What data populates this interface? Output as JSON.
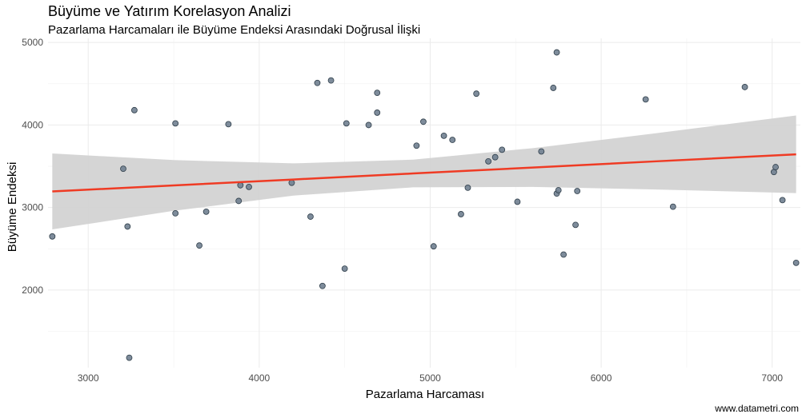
{
  "chart_data": {
    "type": "scatter",
    "title": "Büyüme ve Yatırım Korelasyon Analizi",
    "subtitle": "Pazarlama Harcamaları ile Büyüme Endeksi Arasındaki Doğrusal İlişki",
    "xlabel": "Pazarlama Harcaması",
    "ylabel": "Büyüme Endeksi",
    "caption": "www.datametri.com",
    "xlim": [
      2765,
      7165
    ],
    "ylim": [
      1060,
      5050
    ],
    "x_ticks": [
      3000,
      4000,
      5000,
      6000,
      7000
    ],
    "x_tick_labels": [
      "3000",
      "4000",
      "5000",
      "6000",
      "7000"
    ],
    "y_ticks": [
      2000,
      3000,
      4000,
      5000
    ],
    "y_tick_labels": [
      "2000",
      "3000",
      "4000",
      "5000"
    ],
    "grid": true,
    "points_color": "#708090",
    "trend_color": "#ef3b24",
    "band_color": "#d3d3d3",
    "points": [
      {
        "x": 2790,
        "y": 2650
      },
      {
        "x": 3205,
        "y": 3470
      },
      {
        "x": 3230,
        "y": 2770
      },
      {
        "x": 3240,
        "y": 1180
      },
      {
        "x": 3270,
        "y": 4180
      },
      {
        "x": 3510,
        "y": 4020
      },
      {
        "x": 3510,
        "y": 2930
      },
      {
        "x": 3650,
        "y": 2540
      },
      {
        "x": 3690,
        "y": 2950
      },
      {
        "x": 3820,
        "y": 4010
      },
      {
        "x": 3880,
        "y": 3080
      },
      {
        "x": 3890,
        "y": 3270
      },
      {
        "x": 3940,
        "y": 3250
      },
      {
        "x": 4190,
        "y": 3300
      },
      {
        "x": 4300,
        "y": 2890
      },
      {
        "x": 4340,
        "y": 4510
      },
      {
        "x": 4370,
        "y": 2050
      },
      {
        "x": 4420,
        "y": 4540
      },
      {
        "x": 4500,
        "y": 2260
      },
      {
        "x": 4510,
        "y": 4020
      },
      {
        "x": 4640,
        "y": 4000
      },
      {
        "x": 4690,
        "y": 4150
      },
      {
        "x": 4690,
        "y": 4390
      },
      {
        "x": 4920,
        "y": 3750
      },
      {
        "x": 4960,
        "y": 4040
      },
      {
        "x": 5020,
        "y": 2530
      },
      {
        "x": 5080,
        "y": 3870
      },
      {
        "x": 5130,
        "y": 3820
      },
      {
        "x": 5180,
        "y": 2920
      },
      {
        "x": 5220,
        "y": 3240
      },
      {
        "x": 5270,
        "y": 4380
      },
      {
        "x": 5340,
        "y": 3560
      },
      {
        "x": 5380,
        "y": 3610
      },
      {
        "x": 5420,
        "y": 3700
      },
      {
        "x": 5510,
        "y": 3070
      },
      {
        "x": 5650,
        "y": 3680
      },
      {
        "x": 5720,
        "y": 4450
      },
      {
        "x": 5740,
        "y": 4880
      },
      {
        "x": 5740,
        "y": 3170
      },
      {
        "x": 5750,
        "y": 3210
      },
      {
        "x": 5780,
        "y": 2430
      },
      {
        "x": 5850,
        "y": 2790
      },
      {
        "x": 5860,
        "y": 3200
      },
      {
        "x": 6260,
        "y": 4310
      },
      {
        "x": 6420,
        "y": 3010
      },
      {
        "x": 6840,
        "y": 4460
      },
      {
        "x": 7010,
        "y": 3430
      },
      {
        "x": 7020,
        "y": 3490
      },
      {
        "x": 7060,
        "y": 3090
      },
      {
        "x": 7140,
        "y": 2330
      }
    ],
    "trend": {
      "x": [
        2790,
        3500,
        4200,
        4900,
        5600,
        6300,
        7140
      ],
      "y": [
        3195,
        3268,
        3340,
        3413,
        3485,
        3558,
        3645
      ],
      "lower": [
        2735,
        2960,
        3145,
        3245,
        3250,
        3220,
        3175
      ],
      "upper": [
        3655,
        3575,
        3535,
        3580,
        3720,
        3895,
        4115
      ]
    }
  }
}
